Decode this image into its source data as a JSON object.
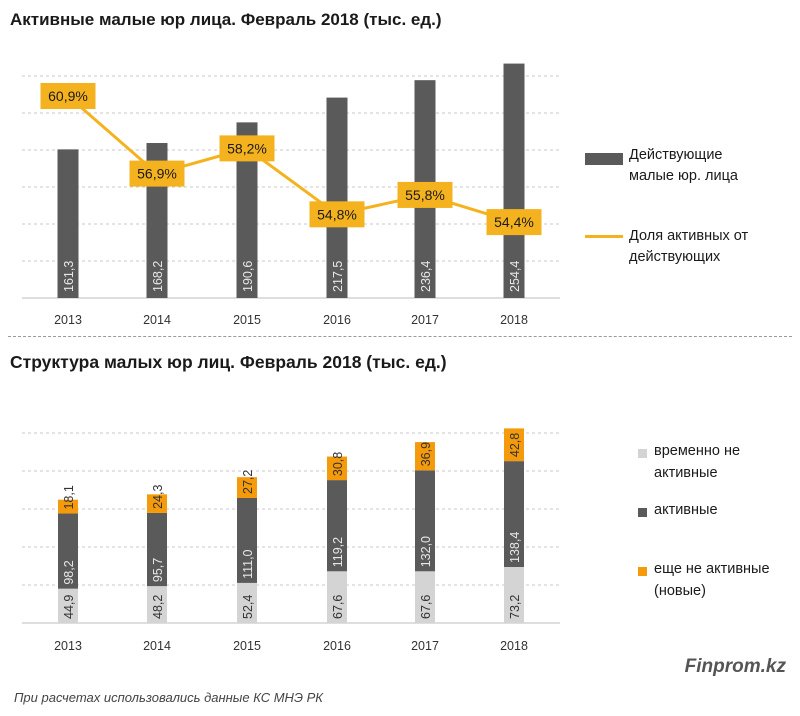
{
  "chart_data": [
    {
      "type": "bar",
      "title": "Активные  малые юр лица. Февраль 2018 (тыс. ед.)",
      "categories": [
        "2013",
        "2014",
        "2015",
        "2016",
        "2017",
        "2018"
      ],
      "series": [
        {
          "name": "Действующие малые юр. лица",
          "kind": "bar",
          "values": [
            161.3,
            168.2,
            190.6,
            217.5,
            236.4,
            254.4
          ],
          "labels": [
            "161,3",
            "168,2",
            "190,6",
            "217,5",
            "236,4",
            "254,4"
          ]
        },
        {
          "name": "Доля активных от действующих",
          "kind": "line",
          "values": [
            60.9,
            56.9,
            58.2,
            54.8,
            55.8,
            54.4
          ],
          "labels": [
            "60,9%",
            "56,9%",
            "58,2%",
            "54,8%",
            "55,8%",
            "54,4%"
          ]
        }
      ],
      "legend": [
        {
          "lines": [
            "Действующие",
            "малые юр. лица"
          ]
        },
        {
          "lines": [
            "Доля активных от",
            "действующих"
          ]
        }
      ],
      "grid": true
    },
    {
      "type": "bar",
      "stacked": true,
      "title": "Структура  малых юр лиц. Февраль 2018  (тыс. ед.)",
      "categories": [
        "2013",
        "2014",
        "2015",
        "2016",
        "2017",
        "2018"
      ],
      "series": [
        {
          "name": "временно не активные",
          "values": [
            44.9,
            48.2,
            52.4,
            67.6,
            67.6,
            73.2
          ],
          "labels": [
            "44,9",
            "48,2",
            "52,4",
            "67,6",
            "67,6",
            "73,2"
          ]
        },
        {
          "name": "активные",
          "values": [
            98.2,
            95.7,
            111.0,
            119.2,
            132.0,
            138.4
          ],
          "labels": [
            "98,2",
            "95,7",
            "111,0",
            "119,2",
            "132,0",
            "138,4"
          ]
        },
        {
          "name": "еще не активные (новые)",
          "values": [
            18.1,
            24.3,
            27.2,
            30.8,
            36.9,
            42.8
          ],
          "labels": [
            "18,1",
            "24,3",
            "27,2",
            "30,8",
            "36,9",
            "42,8"
          ]
        }
      ],
      "legend": [
        {
          "lines": [
            "временно не",
            "активные"
          ]
        },
        {
          "lines": [
            "активные"
          ]
        },
        {
          "lines": [
            "еще не активные",
            "(новые)"
          ]
        }
      ],
      "grid": true
    }
  ],
  "colors": {
    "bar_dark": "#5a5a5a",
    "line_orange": "#f5b21f",
    "label_box": "#f5b21f",
    "seg_light": "#d4d4d4",
    "seg_dark": "#5a5a5a",
    "seg_orange": "#f59a0a",
    "grid": "#c8c8c8",
    "axis_text": "#333333"
  },
  "footer": {
    "brand": "Finprom.kz",
    "source": "При расчетах использовались данные КС МНЭ РК"
  }
}
